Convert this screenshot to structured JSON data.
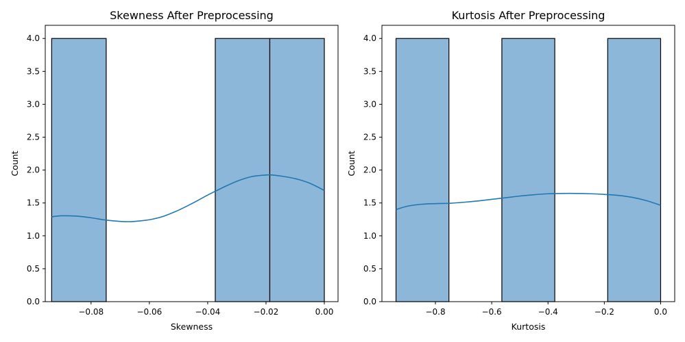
{
  "colors": {
    "bar_fill": "#8db7d9",
    "bar_edge": "#000000",
    "kde_line": "#1f77b4",
    "axes": "#000000",
    "background": "#ffffff"
  },
  "chart_data": [
    {
      "type": "bar",
      "subtype": "histogram-with-kde",
      "title": "Skewness After Preprocessing",
      "xlabel": "Skewness",
      "ylabel": "Count",
      "xlim": [
        -0.0957,
        0.0047
      ],
      "ylim": [
        0,
        4.2
      ],
      "grid": false,
      "x_ticks": [
        -0.08,
        -0.06,
        -0.04,
        -0.02,
        0.0
      ],
      "x_tick_labels": [
        "−0.08",
        "−0.06",
        "−0.04",
        "−0.02",
        "0.00"
      ],
      "y_ticks": [
        0.0,
        0.5,
        1.0,
        1.5,
        2.0,
        2.5,
        3.0,
        3.5,
        4.0
      ],
      "y_tick_labels": [
        "0.0",
        "0.5",
        "1.0",
        "1.5",
        "2.0",
        "2.5",
        "3.0",
        "3.5",
        "4.0"
      ],
      "bins": [
        {
          "x0": -0.0935,
          "x1": -0.0748,
          "count": 4
        },
        {
          "x0": -0.0374,
          "x1": -0.0187,
          "count": 4
        },
        {
          "x0": -0.0187,
          "x1": 0.0,
          "count": 4
        }
      ],
      "kde": {
        "x": [
          -0.0935,
          -0.09,
          -0.085,
          -0.08,
          -0.075,
          -0.07,
          -0.067,
          -0.065,
          -0.06,
          -0.055,
          -0.05,
          -0.045,
          -0.04,
          -0.035,
          -0.03,
          -0.025,
          -0.02,
          -0.018,
          -0.015,
          -0.01,
          -0.005,
          0.0
        ],
        "y": [
          1.29,
          1.305,
          1.3,
          1.275,
          1.24,
          1.22,
          1.215,
          1.22,
          1.245,
          1.3,
          1.39,
          1.5,
          1.62,
          1.73,
          1.83,
          1.9,
          1.925,
          1.925,
          1.91,
          1.87,
          1.8,
          1.69
        ]
      }
    },
    {
      "type": "bar",
      "subtype": "histogram-with-kde",
      "title": "Kurtosis After Preprocessing",
      "xlabel": "Kurtosis",
      "ylabel": "Count",
      "xlim": [
        -0.99,
        0.05
      ],
      "ylim": [
        0,
        4.2
      ],
      "grid": false,
      "x_ticks": [
        -0.8,
        -0.6,
        -0.4,
        -0.2,
        0.0
      ],
      "x_tick_labels": [
        "−0.8",
        "−0.6",
        "−0.4",
        "−0.2",
        "0.0"
      ],
      "y_ticks": [
        0.0,
        0.5,
        1.0,
        1.5,
        2.0,
        2.5,
        3.0,
        3.5,
        4.0
      ],
      "y_tick_labels": [
        "0.0",
        "0.5",
        "1.0",
        "1.5",
        "2.0",
        "2.5",
        "3.0",
        "3.5",
        "4.0"
      ],
      "bins": [
        {
          "x0": -0.94,
          "x1": -0.752,
          "count": 4
        },
        {
          "x0": -0.564,
          "x1": -0.376,
          "count": 4
        },
        {
          "x0": -0.188,
          "x1": 0.0,
          "count": 4
        }
      ],
      "kde": {
        "x": [
          -0.94,
          -0.9,
          -0.85,
          -0.8,
          -0.75,
          -0.7,
          -0.65,
          -0.6,
          -0.55,
          -0.5,
          -0.45,
          -0.4,
          -0.35,
          -0.3,
          -0.25,
          -0.2,
          -0.15,
          -0.1,
          -0.05,
          0.0
        ],
        "y": [
          1.4,
          1.45,
          1.48,
          1.49,
          1.495,
          1.51,
          1.53,
          1.555,
          1.58,
          1.605,
          1.625,
          1.64,
          1.645,
          1.645,
          1.64,
          1.63,
          1.615,
          1.585,
          1.535,
          1.465
        ]
      }
    }
  ]
}
